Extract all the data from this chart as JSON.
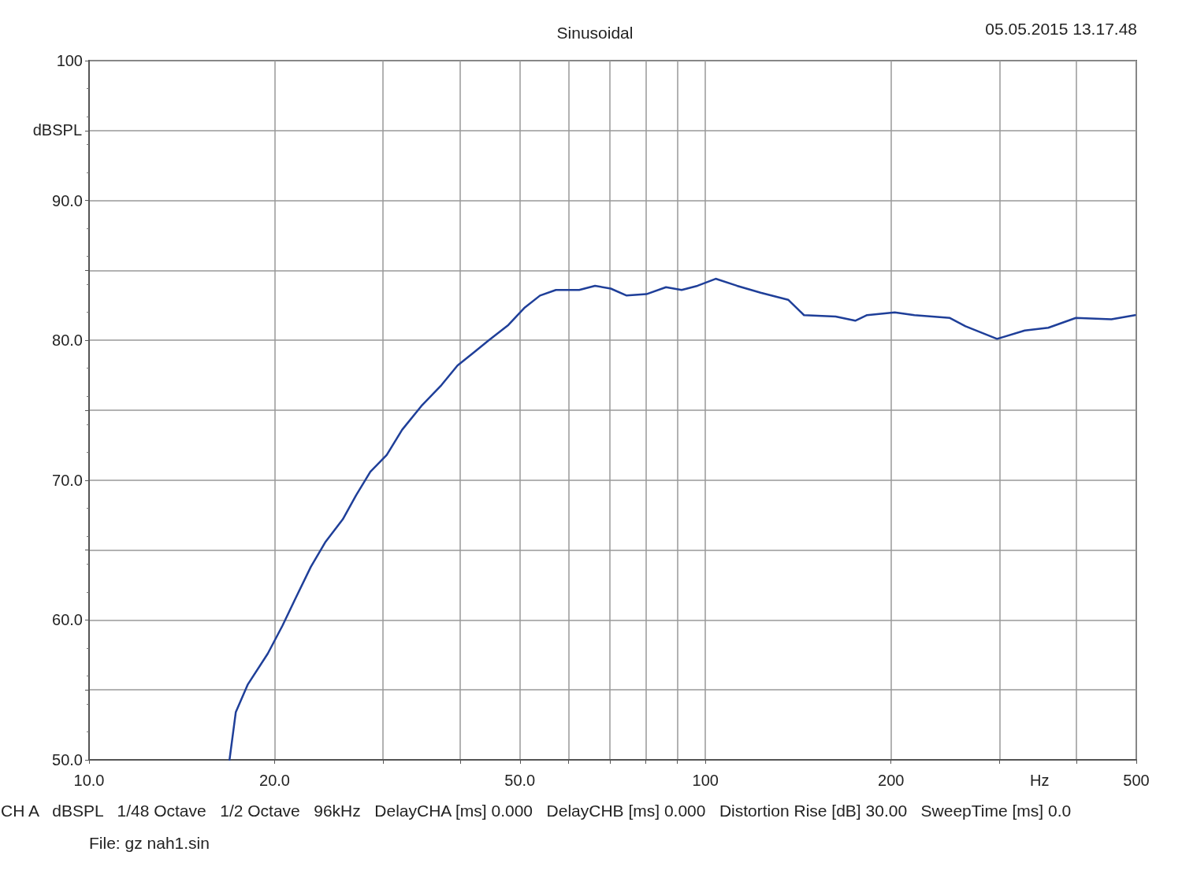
{
  "chart_data": {
    "type": "line",
    "title": "Sinusoidal",
    "xlabel": "Hz",
    "ylabel": "dBSPL",
    "annotations": [
      "05.05.2015 13.17.48",
      "CH A   dBSPL   1/48 Octave   1/2 Octave   96kHz   DelayCHA [ms] 0.000   DelayCHB [ms] 0.000   Distortion Rise [dB] 30.00   SweepTime [ms] 0.0",
      "File: gz nah1.sin"
    ],
    "log": "x",
    "grid": true,
    "marker": "none",
    "line_style": "solid",
    "xlim": [
      10,
      500
    ],
    "xticks": [
      {
        "value": 10,
        "label": "10.0"
      },
      {
        "value": 20,
        "label": "20.0"
      },
      {
        "value": 30,
        "label": null
      },
      {
        "value": 40,
        "label": null
      },
      {
        "value": 50,
        "label": "50.0"
      },
      {
        "value": 60,
        "label": null
      },
      {
        "value": 70,
        "label": null
      },
      {
        "value": 80,
        "label": null
      },
      {
        "value": 90,
        "label": null
      },
      100,
      200,
      {
        "value": 300,
        "label": null
      },
      {
        "value": 400,
        "label": null
      },
      500
    ],
    "ylim": [
      50,
      100
    ],
    "yticks": [
      {
        "value": 50,
        "label": "50.0"
      },
      {
        "value": 55,
        "label": null
      },
      {
        "value": 60,
        "label": "60.0"
      },
      {
        "value": 65,
        "label": null
      },
      {
        "value": 70,
        "label": "70.0"
      },
      {
        "value": 75,
        "label": null
      },
      {
        "value": 80,
        "label": "80.0"
      },
      {
        "value": 85,
        "label": null
      },
      {
        "value": 90,
        "label": "90.0"
      },
      {
        "value": 95,
        "label": null
      },
      100
    ],
    "series": [
      {
        "color": "#1f3f99",
        "x": [
          16.9,
          17.3,
          18.1,
          19.5,
          20.6,
          21.6,
          22.9,
          24.2,
          25.8,
          27.1,
          28.6,
          30.4,
          32.2,
          34.6,
          37.3,
          39.6,
          42.0,
          44.5,
          47.9,
          50.8,
          53.9,
          57.2,
          62.4,
          66.2,
          70.2,
          74.5,
          80.2,
          86.3,
          91.5,
          97.1,
          103.9,
          112.5,
          122.9,
          136.2,
          144.5,
          162.6,
          175.0,
          182.9,
          202.8,
          218.3,
          249.2,
          264.2,
          297.2,
          329.6,
          359.9,
          399.0,
          455.6,
          497.8
        ],
        "values": [
          50.0,
          53.4,
          55.4,
          57.6,
          59.6,
          61.5,
          63.8,
          65.6,
          67.2,
          68.9,
          70.6,
          71.8,
          73.6,
          75.3,
          76.8,
          78.2,
          79.1,
          80.0,
          81.1,
          82.3,
          83.2,
          83.6,
          83.6,
          83.9,
          83.7,
          83.2,
          83.3,
          83.8,
          83.6,
          83.9,
          84.4,
          83.9,
          83.4,
          82.9,
          81.8,
          81.7,
          81.4,
          81.8,
          82.0,
          81.8,
          81.6,
          81.0,
          80.1,
          80.7,
          80.9,
          81.6,
          81.5,
          81.8
        ]
      }
    ]
  }
}
